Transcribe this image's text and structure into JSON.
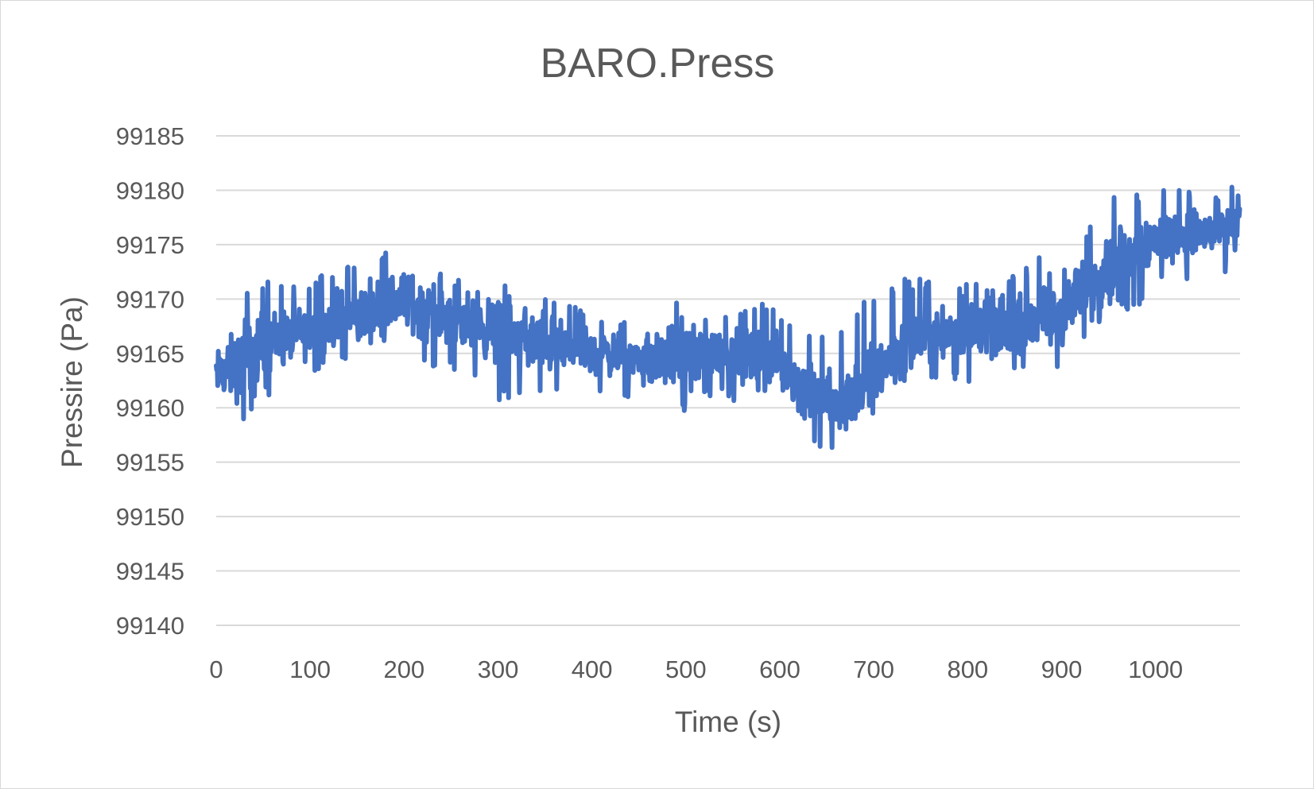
{
  "chart_data": {
    "type": "line",
    "title": "BARO.Press",
    "xlabel": "Time (s)",
    "ylabel": "Pressire (Pa)",
    "xlim": [
      0,
      1090
    ],
    "ylim": [
      99140,
      99185
    ],
    "x_ticks": [
      0,
      100,
      200,
      300,
      400,
      500,
      600,
      700,
      800,
      900,
      1000
    ],
    "y_ticks": [
      99140,
      99145,
      99150,
      99155,
      99160,
      99165,
      99170,
      99175,
      99180,
      99185
    ],
    "grid": true,
    "legend": "none",
    "series": [
      {
        "color": "#4472C4",
        "x": [
          0,
          25,
          50,
          75,
          100,
          125,
          150,
          175,
          200,
          225,
          250,
          275,
          300,
          325,
          350,
          375,
          400,
          425,
          450,
          475,
          500,
          525,
          550,
          575,
          600,
          625,
          650,
          675,
          700,
          725,
          750,
          775,
          800,
          825,
          850,
          875,
          900,
          925,
          950,
          975,
          1000,
          1025,
          1050,
          1075,
          1090
        ],
        "y_mean": [
          99163,
          99164,
          99166,
          99166.5,
          99167,
          99168,
          99168.5,
          99169.5,
          99170,
          99169,
          99168,
          99167.5,
          99167,
          99166.5,
          99166,
          99165.5,
          99165,
          99165,
          99164.5,
          99164.5,
          99165,
          99165,
          99165,
          99164.5,
          99164,
          99162,
          99160.5,
          99161,
          99163,
          99165.5,
          99166.5,
          99167,
          99167.5,
          99167.5,
          99167.5,
          99168,
          99168.5,
          99171,
          99173,
          99174.5,
          99175.5,
          99176,
          99176,
          99176.5,
          99177
        ],
        "y_max": [
          99167,
          99171,
          99172,
          99171.5,
          99171.5,
          99173,
          99174,
          99174.5,
          99176,
          99174,
          99172,
          99171.5,
          99171,
          99172,
          99171,
          99170,
          99168.5,
          99168.5,
          99169.5,
          99170,
          99170,
          99170.5,
          99168,
          99170,
          99169,
          99167,
          99166.5,
          99168,
          99171,
          99172,
          99172,
          99171,
          99171.5,
          99172,
          99172.5,
          99174,
          99173,
          99176,
          99179.5,
          99179.5,
          99181,
          99180,
          99181,
          99180,
          99182
        ],
        "y_min": [
          99159,
          99158,
          99161,
          99161.5,
          99163,
          99163.5,
          99164,
          99165,
          99166.5,
          99163,
          99163,
          99162.5,
          99160,
          99161.5,
          99161,
          99161.5,
          99160.5,
          99161,
          99161,
          99160,
          99159.5,
          99161,
          99160.5,
          99160.5,
          99160,
          99158.5,
          99155,
          99158.5,
          99159.5,
          99162,
          99162.5,
          99162.5,
          99161.5,
          99161,
          99163,
          99163.5,
          99162.5,
          99166,
          99169,
          99168.5,
          99171,
          99171.5,
          99171.5,
          99172.5,
          99174
        ]
      }
    ]
  }
}
